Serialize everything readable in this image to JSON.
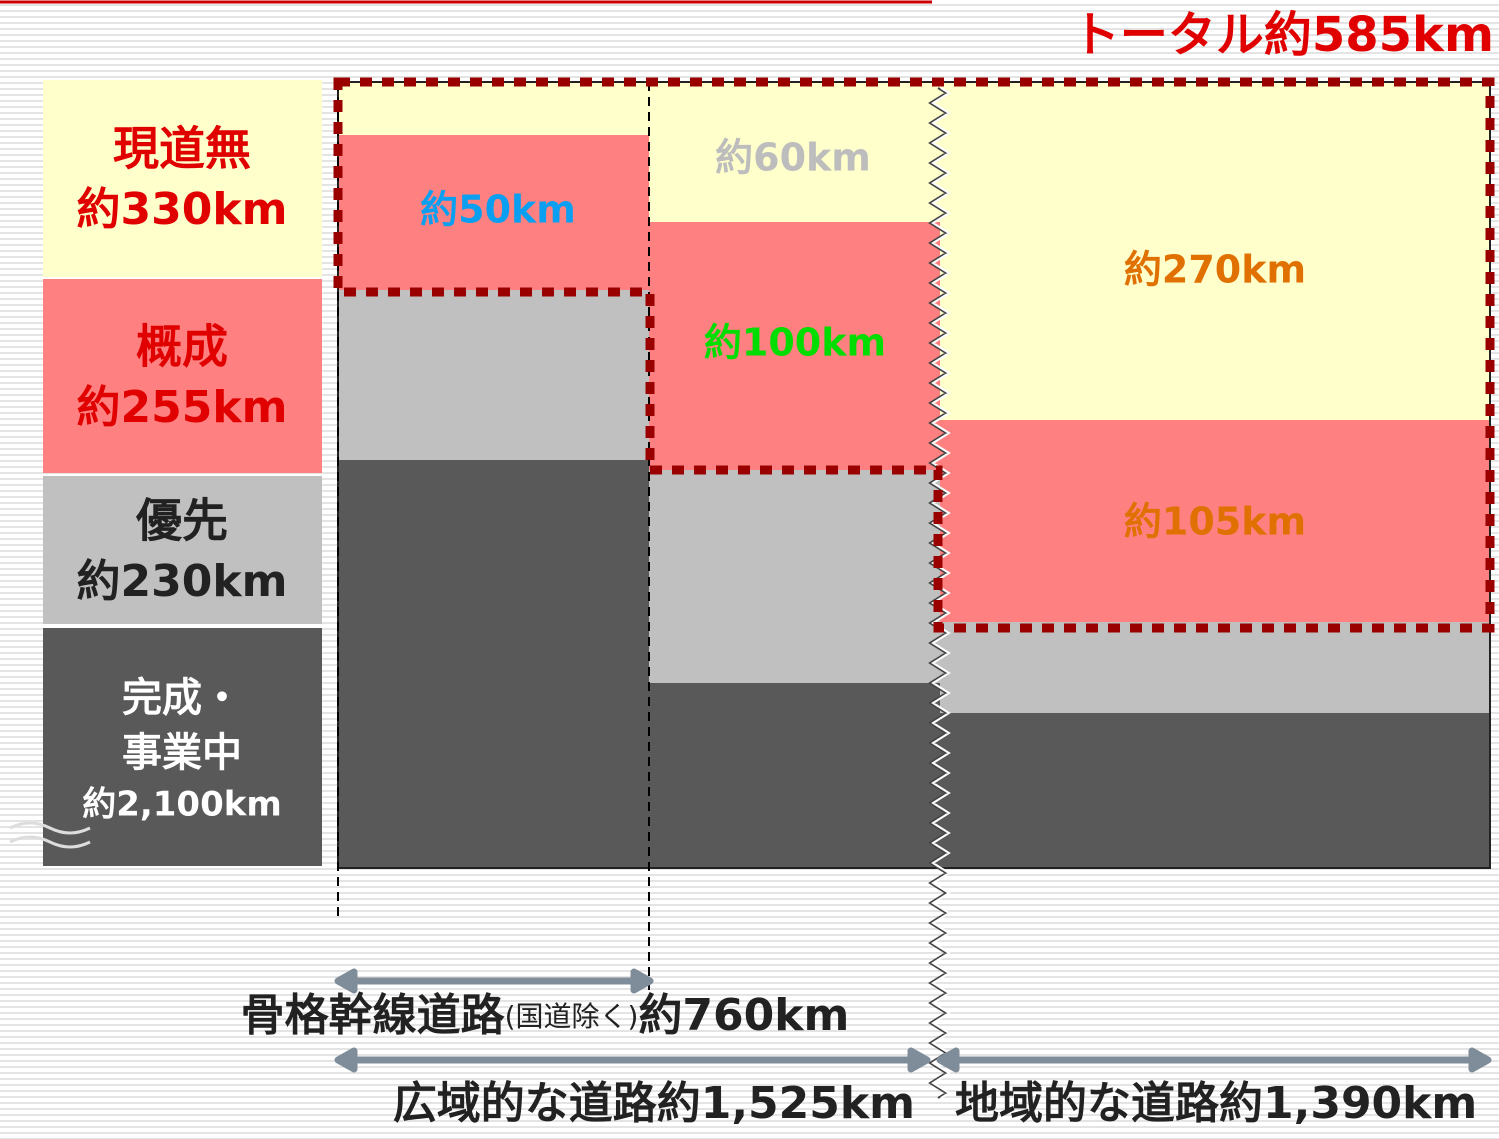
{
  "total_label": "トータル約585km",
  "legend": [
    {
      "lines": [
        "現道無",
        "約330km"
      ]
    },
    {
      "lines": [
        "概成",
        "約255km"
      ]
    },
    {
      "lines": [
        "優先",
        "約230km"
      ]
    },
    {
      "lines": [
        "完成・",
        "事業中",
        "約2,100km"
      ]
    }
  ],
  "columns": [
    {
      "labels": [
        "約50km"
      ]
    },
    {
      "labels": [
        "約60km",
        "約100km"
      ]
    },
    {
      "labels": [
        "約270km",
        "約105km"
      ]
    }
  ],
  "spans": [
    {
      "parts": [
        "骨格幹線道路",
        "(国道除く)",
        "約760km"
      ]
    },
    {
      "parts": [
        "広域的な道路約1,525km"
      ]
    },
    {
      "parts": [
        "地域的な道路約1,390km"
      ]
    }
  ]
}
